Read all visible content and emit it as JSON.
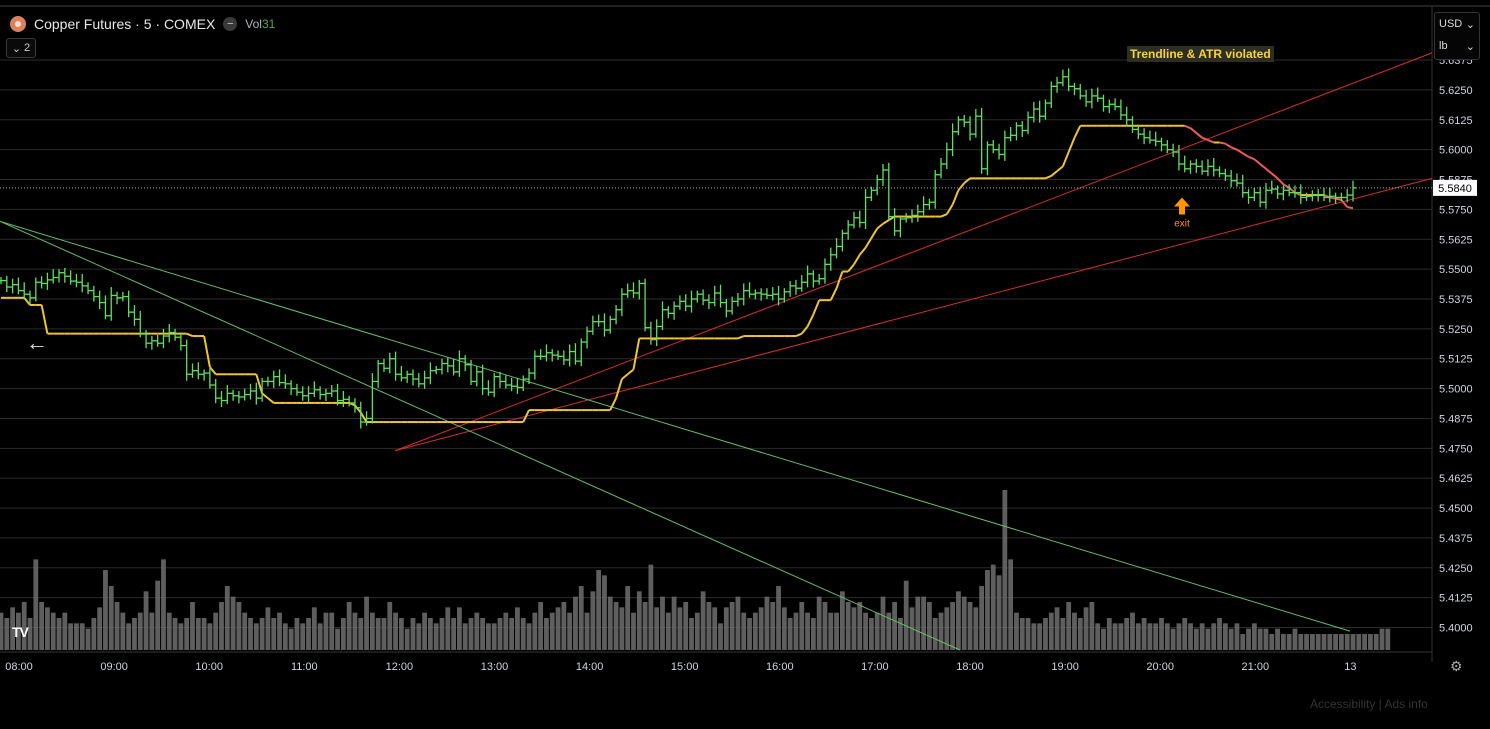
{
  "header": {
    "symbol": "Copper Futures · 5 · COMEX",
    "vol_label": "Vol",
    "vol_value": "31",
    "collapse_count": "2"
  },
  "units": {
    "currency": "USD",
    "unit": "lb"
  },
  "annotation": {
    "text": "Trendline & ATR violated",
    "color": "#f5d33c"
  },
  "exit_marker": {
    "label": "exit",
    "color": "#ff9800"
  },
  "footer": {
    "text": "Accessibility  |  Ads info"
  },
  "colors": {
    "candle": "#5ee05e",
    "atr_up": "#f0c430",
    "atr_down": "#f05a5a",
    "trend_red": "#d32f2f",
    "trend_green": "#66bb6a",
    "volume": "#6e6e6e"
  },
  "chart_data": {
    "type": "bar",
    "subtype": "ohlc_bar",
    "title": "Copper Futures · 5 · COMEX",
    "xlabel": "",
    "ylabel": "",
    "ylim": [
      5.3906,
      5.6438
    ],
    "x_ticks": [
      "08:00",
      "09:00",
      "10:00",
      "11:00",
      "12:00",
      "13:00",
      "14:00",
      "15:00",
      "16:00",
      "17:00",
      "18:00",
      "19:00",
      "20:00",
      "21:00",
      "13"
    ],
    "y_ticks": [
      "5.6375",
      "5.6250",
      "5.6125",
      "5.6000",
      "5.5875",
      "5.5750",
      "5.5625",
      "5.5500",
      "5.5375",
      "5.5250",
      "5.5125",
      "5.5000",
      "5.4875",
      "5.4750",
      "5.4625",
      "5.4500",
      "5.4375",
      "5.4250",
      "5.4125",
      "5.4000"
    ],
    "last_price": "5.5840",
    "grid": true,
    "series": [
      {
        "name": "Price",
        "values": [
          5.5452,
          5.5425,
          5.5435,
          5.541,
          5.5395,
          5.538,
          5.5445,
          5.544,
          5.5455,
          5.5465,
          5.5485,
          5.547,
          5.545,
          5.5445,
          5.543,
          5.541,
          5.5385,
          5.536,
          5.5305,
          5.539,
          5.538,
          5.5385,
          5.532,
          5.529,
          5.523,
          5.519,
          5.52,
          5.519,
          5.522,
          5.5235,
          5.5215,
          5.518,
          5.506,
          5.5075,
          5.506,
          5.5065,
          5.5015,
          5.496,
          5.495,
          5.498,
          5.497,
          5.4965,
          5.4975,
          5.499,
          5.496,
          5.503,
          5.503,
          5.505,
          5.5025,
          5.502,
          5.5,
          5.4985,
          5.497,
          5.498,
          5.4995,
          5.4975,
          5.498,
          5.499,
          5.495,
          5.4955,
          5.494,
          5.492,
          5.486,
          5.4875,
          5.503,
          5.5105,
          5.5085,
          5.5125,
          5.506,
          5.5045,
          5.506,
          5.504,
          5.502,
          5.5045,
          5.5075,
          5.508,
          5.5105,
          5.5095,
          5.507,
          5.5125,
          5.51,
          5.503,
          5.507,
          5.5,
          5.4985,
          5.505,
          5.503,
          5.5015,
          5.501,
          5.5005,
          5.504,
          5.5065,
          5.5135,
          5.5135,
          5.515,
          5.514,
          5.5135,
          5.512,
          5.5155,
          5.5115,
          5.5195,
          5.524,
          5.528,
          5.528,
          5.5245,
          5.529,
          5.533,
          5.5395,
          5.541,
          5.54,
          5.544,
          5.5255,
          5.5205,
          5.526,
          5.533,
          5.5315,
          5.5345,
          5.5365,
          5.5345,
          5.5375,
          5.5395,
          5.537,
          5.536,
          5.54,
          5.536,
          5.5325,
          5.5365,
          5.5375,
          5.541,
          5.5395,
          5.54,
          5.5395,
          5.539,
          5.5395,
          5.5375,
          5.5405,
          5.543,
          5.542,
          5.5445,
          5.548,
          5.545,
          5.546,
          5.552,
          5.556,
          5.5595,
          5.565,
          5.5685,
          5.5715,
          5.5695,
          5.58,
          5.583,
          5.5875,
          5.5915,
          5.572,
          5.566,
          5.571,
          5.5715,
          5.5725,
          5.574,
          5.577,
          5.578,
          5.5895,
          5.594,
          5.6,
          5.6075,
          5.6125,
          5.6115,
          5.6065,
          5.614,
          5.592,
          5.602,
          5.6,
          5.598,
          5.605,
          5.606,
          5.61,
          5.608,
          5.6135,
          5.617,
          5.614,
          5.6195,
          5.6265,
          5.628,
          5.6305,
          5.6265,
          5.6255,
          5.6225,
          5.62,
          5.6225,
          5.6215,
          5.618,
          5.619,
          5.618,
          5.6145,
          5.6125,
          5.6085,
          5.6065,
          5.605,
          5.604,
          5.6035,
          5.602,
          5.6,
          5.599,
          5.594,
          5.592,
          5.594,
          5.593,
          5.591,
          5.593,
          5.5915,
          5.59,
          5.589,
          5.587,
          5.586,
          5.582,
          5.58,
          5.582,
          5.578,
          5.583,
          5.5835,
          5.5815,
          5.583,
          5.582,
          5.582,
          5.58,
          5.5805,
          5.581,
          5.581,
          5.58,
          5.5805,
          5.58,
          5.58,
          5.581,
          5.584
        ]
      },
      {
        "name": "Volume",
        "values": [
          14,
          12,
          16,
          14,
          18,
          12,
          34,
          18,
          16,
          14,
          12,
          14,
          10,
          10,
          10,
          8,
          12,
          16,
          30,
          24,
          18,
          14,
          10,
          12,
          14,
          22,
          14,
          26,
          34,
          14,
          12,
          10,
          12,
          18,
          12,
          12,
          10,
          14,
          18,
          24,
          20,
          18,
          14,
          12,
          10,
          12,
          16,
          12,
          14,
          10,
          8,
          12,
          10,
          12,
          16,
          10,
          14,
          14,
          8,
          12,
          18,
          14,
          12,
          20,
          14,
          12,
          12,
          18,
          14,
          12,
          8,
          12,
          10,
          14,
          12,
          10,
          12,
          16,
          12,
          16,
          10,
          12,
          14,
          12,
          10,
          10,
          12,
          14,
          12,
          16,
          12,
          10,
          14,
          18,
          12,
          14,
          16,
          18,
          14,
          20,
          24,
          14,
          22,
          30,
          28,
          20,
          18,
          16,
          24,
          14,
          22,
          18,
          32,
          16,
          20,
          14,
          20,
          16,
          18,
          12,
          14,
          22,
          18,
          16,
          10,
          16,
          18,
          20,
          14,
          12,
          14,
          16,
          20,
          18,
          24,
          16,
          12,
          14,
          18,
          14,
          12,
          20,
          18,
          14,
          14,
          22,
          18,
          16,
          18,
          14,
          12,
          14,
          20,
          14,
          18,
          12,
          26,
          16,
          20,
          20,
          18,
          12,
          14,
          16,
          18,
          22,
          20,
          18,
          16,
          24,
          30,
          32,
          28,
          60,
          34,
          14,
          12,
          12,
          10,
          10,
          12,
          14,
          16,
          12,
          18,
          14,
          12,
          16,
          18,
          10,
          8,
          12,
          10,
          10,
          12,
          14,
          10,
          12,
          10,
          10,
          12,
          10,
          8,
          10,
          12,
          10,
          8,
          10,
          8,
          10,
          12,
          10,
          8,
          10,
          6,
          8,
          10,
          8,
          8,
          6,
          8,
          6,
          6,
          8,
          6,
          6,
          6,
          6,
          6,
          6,
          6,
          6,
          6,
          6,
          6,
          6,
          6,
          6,
          8,
          8
        ]
      },
      {
        "name": "ATR Trail",
        "values": [
          5.538,
          5.538,
          5.538,
          5.538,
          5.538,
          5.535,
          5.535,
          5.535,
          5.523,
          5.523,
          5.523,
          5.523,
          5.523,
          5.523,
          5.523,
          5.523,
          5.523,
          5.523,
          5.523,
          5.523,
          5.523,
          5.523,
          5.523,
          5.523,
          5.523,
          5.523,
          5.523,
          5.523,
          5.523,
          5.523,
          5.523,
          5.523,
          5.523,
          5.522,
          5.522,
          5.522,
          5.509,
          5.506,
          5.506,
          5.506,
          5.506,
          5.506,
          5.506,
          5.506,
          5.506,
          5.498,
          5.496,
          5.494,
          5.494,
          5.494,
          5.494,
          5.494,
          5.494,
          5.494,
          5.494,
          5.494,
          5.494,
          5.494,
          5.494,
          5.494,
          5.494,
          5.493,
          5.49,
          5.486,
          5.486,
          5.486,
          5.486,
          5.486,
          5.486,
          5.486,
          5.486,
          5.486,
          5.486,
          5.486,
          5.486,
          5.486,
          5.486,
          5.486,
          5.486,
          5.486,
          5.486,
          5.486,
          5.486,
          5.486,
          5.486,
          5.486,
          5.486,
          5.486,
          5.486,
          5.486,
          5.486,
          5.491,
          5.491,
          5.491,
          5.491,
          5.491,
          5.491,
          5.491,
          5.491,
          5.491,
          5.491,
          5.491,
          5.491,
          5.491,
          5.491,
          5.491,
          5.496,
          5.504,
          5.506,
          5.508,
          5.521,
          5.521,
          5.521,
          5.521,
          5.521,
          5.521,
          5.521,
          5.521,
          5.521,
          5.521,
          5.521,
          5.521,
          5.521,
          5.521,
          5.521,
          5.521,
          5.521,
          5.521,
          5.522,
          5.522,
          5.522,
          5.522,
          5.522,
          5.522,
          5.522,
          5.522,
          5.522,
          5.522,
          5.523,
          5.526,
          5.531,
          5.537,
          5.537,
          5.537,
          5.542,
          5.549,
          5.549,
          5.552,
          5.556,
          5.559,
          5.563,
          5.567,
          5.569,
          5.5705,
          5.572,
          5.572,
          5.572,
          5.572,
          5.572,
          5.572,
          5.572,
          5.572,
          5.572,
          5.573,
          5.577,
          5.583,
          5.586,
          5.588,
          5.588,
          5.588,
          5.588,
          5.588,
          5.588,
          5.588,
          5.588,
          5.588,
          5.588,
          5.588,
          5.588,
          5.588,
          5.588,
          5.589,
          5.591,
          5.593,
          5.599,
          5.605,
          5.61,
          5.61,
          5.61,
          5.61,
          5.61,
          5.61,
          5.61,
          5.61,
          5.61,
          5.61,
          5.61,
          5.61,
          5.61,
          5.61,
          5.61,
          5.61,
          5.61,
          5.61,
          5.61,
          5.609,
          5.607,
          5.605,
          5.604,
          5.603,
          5.603,
          5.6025,
          5.601,
          5.6,
          5.5985,
          5.597,
          5.596,
          5.594,
          5.592,
          5.59,
          5.588,
          5.5855,
          5.584,
          5.582,
          5.581,
          5.581,
          5.581,
          5.581,
          5.581,
          5.58,
          5.5795,
          5.579,
          5.576,
          5.5755,
          5.5755,
          5.5755,
          5.5755,
          5.576,
          5.577
        ]
      }
    ],
    "trendlines": [
      {
        "color": "red",
        "from": [
          "12:00",
          5.474
        ],
        "to": [
          "beyond 21:00",
          5.6405
        ]
      },
      {
        "color": "red",
        "from": [
          "12:00",
          5.474
        ],
        "to": [
          "beyond 21:00",
          5.588
        ]
      },
      {
        "color": "green",
        "from": [
          "before 08:00",
          5.57
        ],
        "to": [
          "beyond 21:00",
          5.3985
        ]
      },
      {
        "color": "green",
        "from": [
          "before 08:00",
          5.57
        ],
        "to": [
          "18:00",
          5.3906
        ]
      }
    ]
  }
}
